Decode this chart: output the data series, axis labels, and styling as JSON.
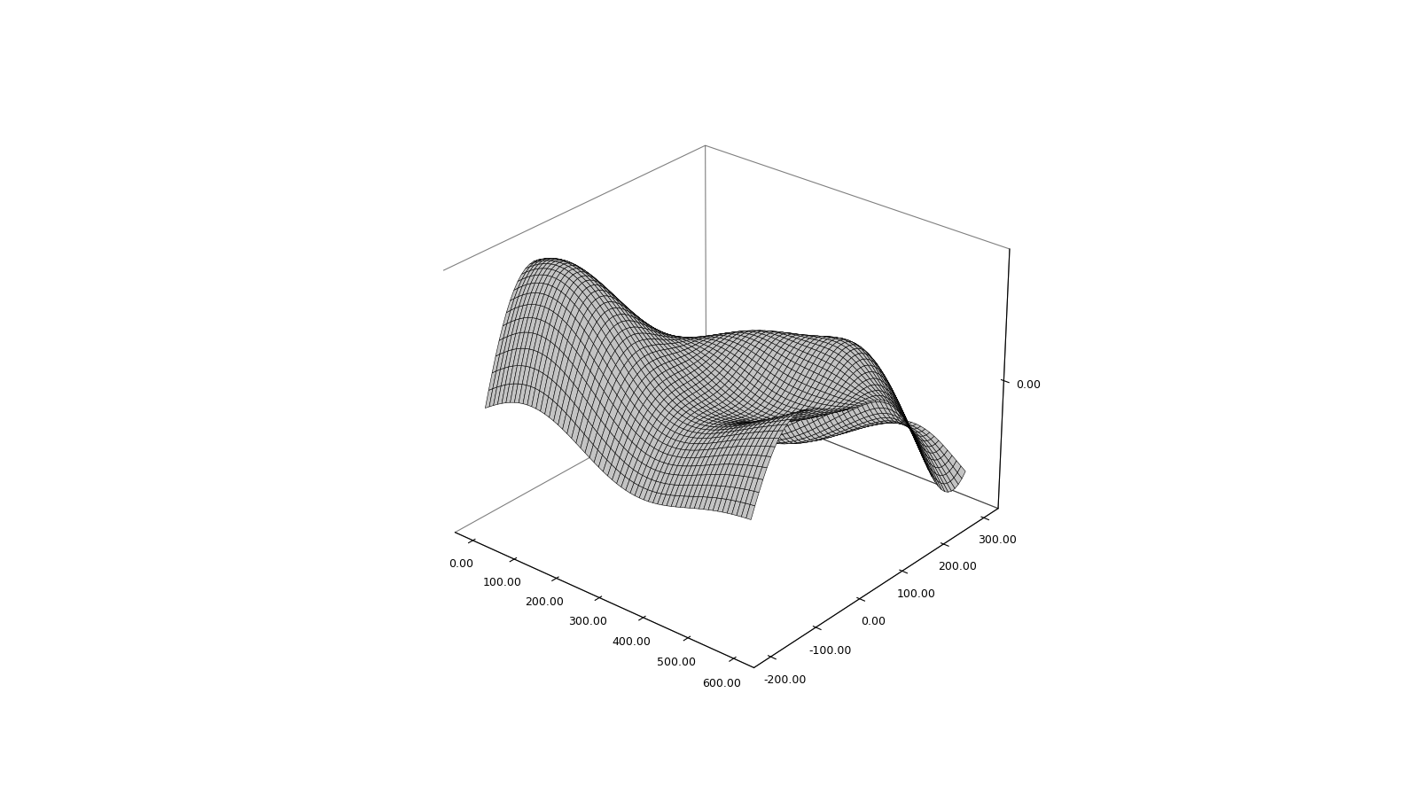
{
  "x_min": 0.0,
  "x_max": 600.0,
  "y_min": -200.0,
  "y_max": 300.0,
  "x_ticks": [
    0.0,
    100.0,
    200.0,
    300.0,
    400.0,
    500.0,
    600.0
  ],
  "y_ticks": [
    -200.0,
    -100.0,
    0.0,
    100.0,
    200.0,
    300.0
  ],
  "z_ticks": [
    0.0
  ],
  "n_x": 60,
  "n_y": 60,
  "background_color": "#ffffff",
  "surface_facecolor": "#ffffff",
  "edge_color": "#000000",
  "linewidth": 0.4,
  "elev": 28,
  "azim": -50,
  "figsize": [
    15.85,
    8.96
  ],
  "dpi": 100,
  "tick_fontsize": 9
}
